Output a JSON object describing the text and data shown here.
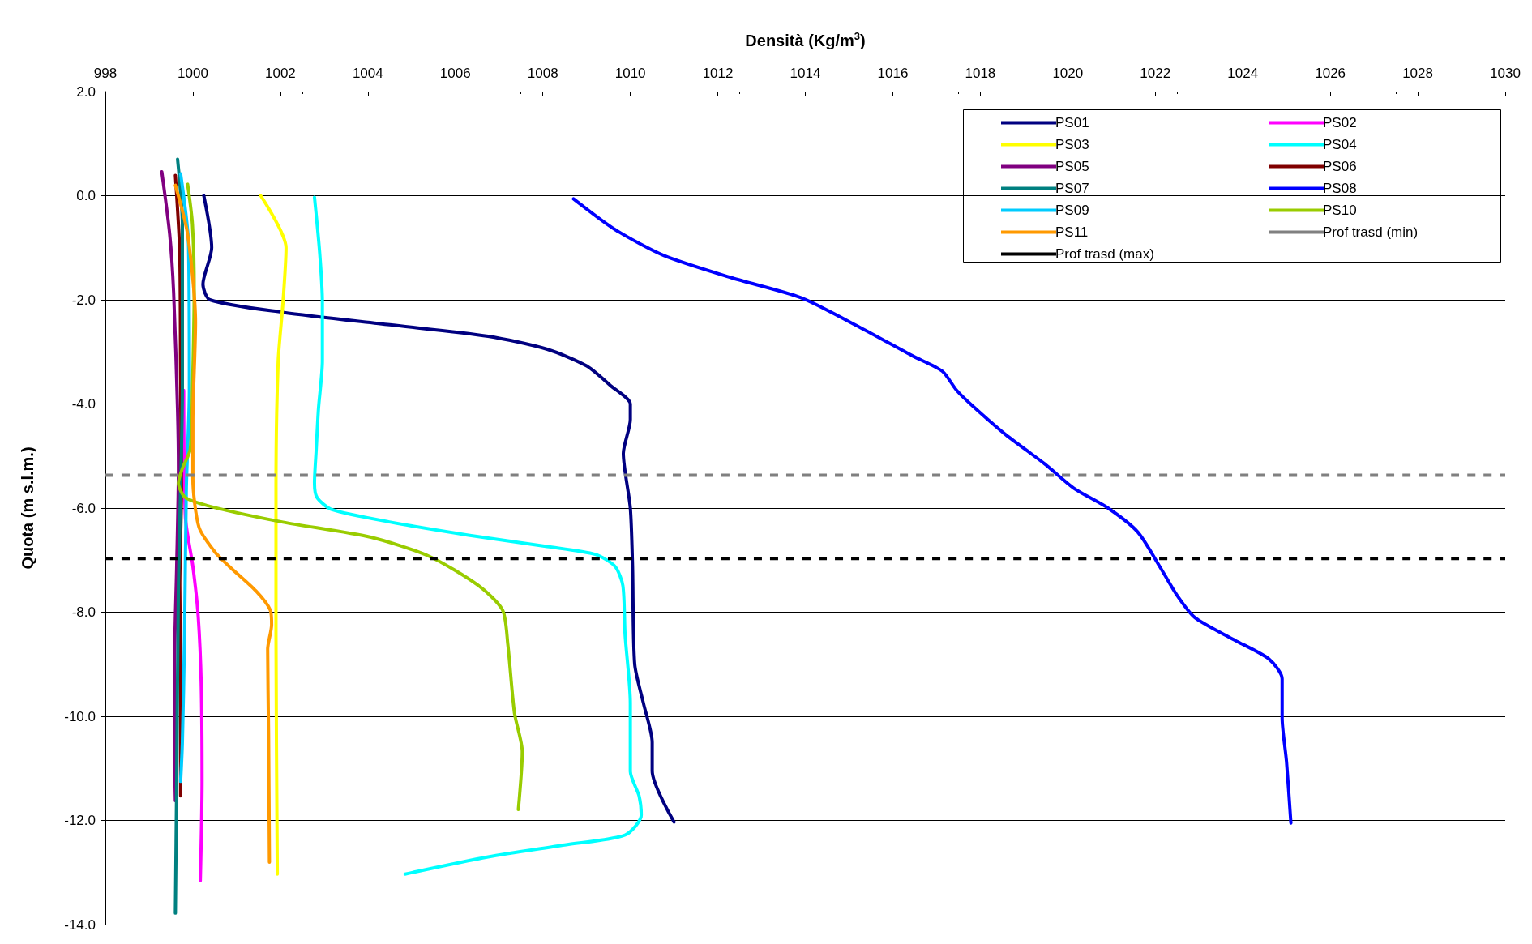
{
  "chart_data": {
    "type": "line",
    "xlabel": "Densità (Kg/m$^{3}$)",
    "ylabel": "Quota (m s.l.m.)",
    "xlim": [
      998,
      1030
    ],
    "xticks": [
      998,
      1000,
      1002,
      1004,
      1006,
      1008,
      1010,
      1012,
      1014,
      1016,
      1018,
      1020,
      1022,
      1024,
      1026,
      1028,
      1030
    ],
    "ylim": [
      -14,
      2
    ],
    "yticks": [
      {
        "value": -14,
        "label": "-14.0"
      },
      {
        "value": -12,
        "label": "-12.0"
      },
      {
        "value": -10,
        "label": "-10.0"
      },
      {
        "value": -8,
        "label": "-8.0"
      },
      {
        "value": -6,
        "label": "-6.0"
      },
      {
        "value": -4,
        "label": "-4.0"
      },
      {
        "value": -2,
        "label": "-2.0"
      },
      {
        "value": 0,
        "label": "0.0"
      },
      {
        "value": 2,
        "label": "2.0"
      }
    ],
    "grid": "y",
    "legend": "top right",
    "marker": "none",
    "line_style": "solid",
    "series": [
      {
        "name": "PS01",
        "color": "#000080",
        "x": [
          1000.25,
          1000.43,
          1000.23,
          1000.39,
          1002.06,
          1004.5,
          1006.75,
          1008.1,
          1009.0,
          1009.55,
          1010.0,
          1010.0,
          1009.84,
          1010.0,
          1010.05,
          1010.1,
          1010.3,
          1010.5,
          1010.5,
          1011.0
        ],
        "values": [
          0.0,
          -1.0,
          -1.7,
          -2.0,
          -2.24,
          -2.48,
          -2.7,
          -2.95,
          -3.27,
          -3.65,
          -4.0,
          -4.3,
          -4.95,
          -6.0,
          -7.1,
          -9.0,
          -9.75,
          -10.5,
          -11.05,
          -12.03
        ]
      },
      {
        "name": "PS02",
        "color": "#ff00ff",
        "x": [
          999.79,
          999.83,
          1000.0,
          1000.12,
          1000.19,
          1000.21,
          1000.17
        ],
        "values": [
          -3.74,
          -6.18,
          -7.12,
          -8.06,
          -9.37,
          -11.25,
          -13.16
        ]
      },
      {
        "name": "PS03",
        "color": "#ffff00",
        "x": [
          1001.55,
          1002.13,
          1002.06,
          1001.95,
          1001.9,
          1001.9,
          1001.93
        ],
        "values": [
          0.0,
          -1.0,
          -2.05,
          -3.18,
          -5.6,
          -8.43,
          -13.03
        ]
      },
      {
        "name": "PS04",
        "color": "#00ffff",
        "x": [
          1002.78,
          1002.9,
          1002.96,
          1002.96,
          1002.87,
          1002.82,
          1002.78,
          1002.84,
          1003.18,
          1004.52,
          1006.3,
          1008.1,
          1009.2,
          1009.65,
          1009.83,
          1009.88,
          1010.0,
          1010.0,
          1010.2,
          1010.25,
          1009.88,
          1008.5,
          1006.75,
          1004.85
        ],
        "values": [
          -0.03,
          -1.11,
          -2.05,
          -3.18,
          -4.1,
          -4.87,
          -5.52,
          -5.8,
          -6.03,
          -6.27,
          -6.52,
          -6.74,
          -6.89,
          -7.12,
          -7.49,
          -8.43,
          -9.74,
          -11.06,
          -11.53,
          -11.9,
          -12.28,
          -12.47,
          -12.7,
          -13.03
        ]
      },
      {
        "name": "PS05",
        "color": "#800080",
        "x": [
          999.29,
          999.47,
          999.56,
          999.65,
          999.67,
          999.63,
          999.58,
          999.58,
          999.6
        ],
        "values": [
          0.46,
          -0.74,
          -1.86,
          -4.12,
          -5.24,
          -7.12,
          -9.0,
          -10.5,
          -11.62
        ]
      },
      {
        "name": "PS06",
        "color": "#800000",
        "x": [
          999.6,
          999.7,
          999.72,
          999.74,
          999.7,
          999.72,
          999.72
        ],
        "values": [
          0.39,
          -1.11,
          -3.74,
          -5.62,
          -7.49,
          -9.37,
          -11.53
        ]
      },
      {
        "name": "PS07",
        "color": "#008080",
        "x": [
          999.65,
          999.76,
          999.76,
          999.72,
          999.67,
          999.63,
          999.6
        ],
        "values": [
          0.7,
          -0.55,
          -3.74,
          -5.62,
          -7.49,
          -11.25,
          -13.78
        ]
      },
      {
        "name": "PS08",
        "color": "#0000ff",
        "x": [
          1008.7,
          1009.65,
          1010.77,
          1012.33,
          1013.9,
          1015.23,
          1016.46,
          1017.13,
          1017.46,
          1017.8,
          1018.58,
          1019.47,
          1020.14,
          1020.92,
          1021.6,
          1022.1,
          1022.5,
          1022.9,
          1023.8,
          1024.6,
          1024.9,
          1024.9,
          1025.0,
          1025.1
        ],
        "values": [
          -0.06,
          -0.65,
          -1.15,
          -1.58,
          -1.96,
          -2.52,
          -3.08,
          -3.37,
          -3.74,
          -4.02,
          -4.59,
          -5.15,
          -5.62,
          -6.0,
          -6.46,
          -7.12,
          -7.68,
          -8.1,
          -8.53,
          -8.9,
          -9.28,
          -10.03,
          -10.87,
          -12.05
        ]
      },
      {
        "name": "PS09",
        "color": "#00ccff",
        "x": [
          999.72,
          999.9,
          999.92,
          999.85,
          999.81,
          999.76,
          999.72
        ],
        "values": [
          0.42,
          -0.93,
          -3.74,
          -5.62,
          -8.43,
          -10.5,
          -11.25
        ]
      },
      {
        "name": "PS10",
        "color": "#99cc00",
        "x": [
          999.88,
          999.99,
          1000.03,
          999.99,
          999.94,
          999.76,
          999.67,
          999.83,
          1000.5,
          1002.06,
          1004.07,
          1005.41,
          1006.53,
          1007.08,
          1007.2,
          1007.35,
          1007.53,
          1007.44
        ],
        "values": [
          0.22,
          -0.55,
          -1.86,
          -3.74,
          -4.87,
          -5.24,
          -5.52,
          -5.8,
          -5.99,
          -6.27,
          -6.56,
          -6.93,
          -7.49,
          -7.96,
          -8.62,
          -9.93,
          -10.68,
          -11.79
        ]
      },
      {
        "name": "PS11",
        "color": "#ff9900",
        "x": [
          999.6,
          999.88,
          1000.06,
          1000.0,
          1000.0,
          1000.14,
          1000.5,
          1000.83,
          1001.44,
          1001.77,
          1001.8,
          1001.71,
          1001.73,
          1001.75
        ],
        "values": [
          0.2,
          -0.74,
          -2.43,
          -4.3,
          -5.43,
          -6.37,
          -6.84,
          -7.12,
          -7.59,
          -7.96,
          -8.24,
          -8.71,
          -10.31,
          -12.8
        ]
      },
      {
        "name": "Prof trasd (min)",
        "color": "#808080",
        "line_style": "dashed",
        "x": [
          998,
          1030
        ],
        "values": [
          -5.37,
          -5.37
        ]
      },
      {
        "name": "Prof trasd (max)",
        "color": "#000000",
        "line_style": "dashed",
        "x": [
          998,
          1030
        ],
        "values": [
          -6.97,
          -6.97
        ]
      }
    ]
  }
}
